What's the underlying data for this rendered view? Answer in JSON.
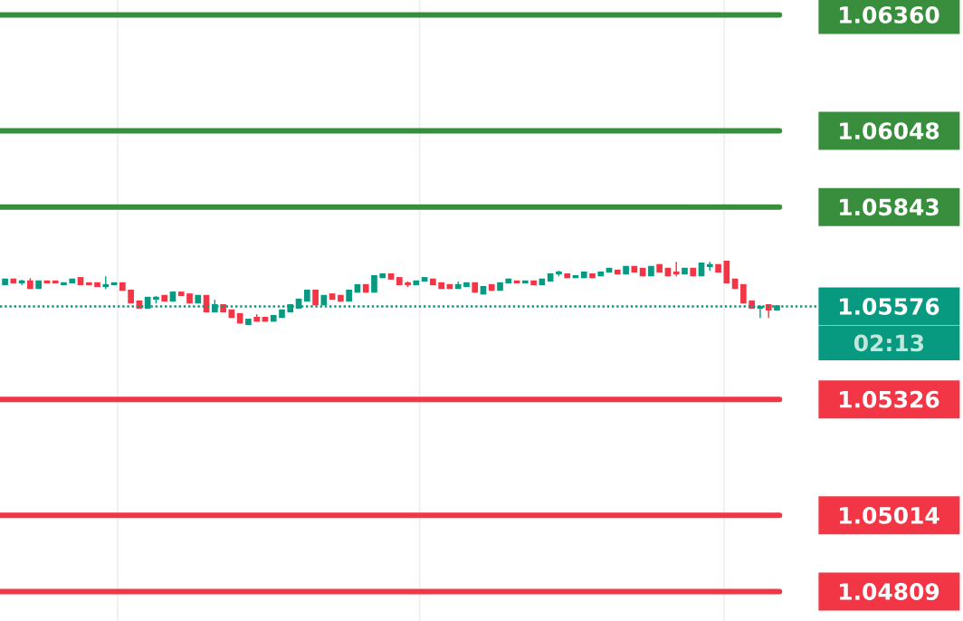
{
  "chart_data": {
    "type": "candlestick",
    "categories": [
      null,
      null,
      null,
      null,
      null,
      null,
      null,
      null,
      null,
      null,
      null,
      null,
      null,
      null,
      null,
      null,
      null,
      null,
      null,
      null,
      null,
      null,
      null,
      null,
      null,
      null,
      null,
      null,
      null,
      null,
      null,
      null,
      null,
      null,
      null,
      null,
      null,
      null,
      null,
      null,
      null,
      null,
      null,
      null,
      null,
      null,
      null,
      null,
      null,
      null,
      null,
      null,
      null,
      null,
      null,
      null,
      null,
      null,
      null,
      null,
      null,
      null,
      null,
      null,
      null,
      null,
      null,
      null,
      null,
      null,
      null,
      null,
      null,
      null,
      null,
      null,
      null,
      null,
      null,
      null,
      null,
      null,
      null,
      null,
      null,
      null,
      null,
      null,
      null,
      null,
      null,
      null,
      null
    ],
    "ohlc": [
      [
        1.05633,
        1.05648,
        1.05633,
        1.05648
      ],
      [
        1.05648,
        1.05648,
        1.05638,
        1.05638
      ],
      [
        1.05638,
        1.05648,
        1.05633,
        1.05643
      ],
      [
        1.05643,
        1.05652,
        1.05623,
        1.05623
      ],
      [
        1.05623,
        1.05643,
        1.05623,
        1.05643
      ],
      [
        1.05643,
        1.05643,
        1.05638,
        1.05638
      ],
      [
        1.05643,
        1.05643,
        1.05638,
        1.05638
      ],
      [
        1.05633,
        1.05638,
        1.05633,
        1.05638
      ],
      [
        1.05638,
        1.05648,
        1.05638,
        1.05648
      ],
      [
        1.05652,
        1.05652,
        1.05633,
        1.05633
      ],
      [
        1.05638,
        1.05638,
        1.05633,
        1.05633
      ],
      [
        1.05638,
        1.05638,
        1.05628,
        1.05628
      ],
      [
        1.05628,
        1.05657,
        1.05623,
        1.05633
      ],
      [
        1.05633,
        1.05638,
        1.05633,
        1.05638
      ],
      [
        1.05638,
        1.05638,
        1.05618,
        1.05618
      ],
      [
        1.05618,
        1.05618,
        1.05584,
        1.05584
      ],
      [
        1.05589,
        1.05589,
        1.0557,
        1.0557
      ],
      [
        1.0557,
        1.05599,
        1.0557,
        1.05599
      ],
      [
        1.05594,
        1.05604,
        1.05584,
        1.05599
      ],
      [
        1.05604,
        1.05604,
        1.05589,
        1.05589
      ],
      [
        1.05589,
        1.05613,
        1.05589,
        1.05613
      ],
      [
        1.05613,
        1.05613,
        1.05604,
        1.05604
      ],
      [
        1.05608,
        1.05608,
        1.05584,
        1.05584
      ],
      [
        1.05584,
        1.05604,
        1.05584,
        1.05604
      ],
      [
        1.05604,
        1.05604,
        1.0556,
        1.0556
      ],
      [
        1.0556,
        1.05594,
        1.0556,
        1.05579
      ],
      [
        1.05579,
        1.05579,
        1.0556,
        1.0556
      ],
      [
        1.05565,
        1.05565,
        1.05545,
        1.05545
      ],
      [
        1.05555,
        1.05555,
        1.0553,
        1.0553
      ],
      [
        1.05526,
        1.0554,
        1.05526,
        1.0554
      ],
      [
        1.05545,
        1.05555,
        1.05535,
        1.05535
      ],
      [
        1.05545,
        1.05545,
        1.05535,
        1.05535
      ],
      [
        1.05535,
        1.0555,
        1.05535,
        1.0555
      ],
      [
        1.05545,
        1.05565,
        1.05545,
        1.05565
      ],
      [
        1.0556,
        1.05579,
        1.0556,
        1.05579
      ],
      [
        1.0557,
        1.05594,
        1.0557,
        1.05594
      ],
      [
        1.05589,
        1.05618,
        1.05589,
        1.05618
      ],
      [
        1.05618,
        1.05618,
        1.05579,
        1.05579
      ],
      [
        1.05579,
        1.05604,
        1.05579,
        1.05604
      ],
      [
        1.05608,
        1.05608,
        1.05594,
        1.05594
      ],
      [
        1.05604,
        1.05604,
        1.05589,
        1.05589
      ],
      [
        1.05589,
        1.05618,
        1.05589,
        1.05618
      ],
      [
        1.05613,
        1.05633,
        1.05613,
        1.05633
      ],
      [
        1.05633,
        1.05633,
        1.05613,
        1.05613
      ],
      [
        1.05613,
        1.05657,
        1.05613,
        1.05657
      ],
      [
        1.05652,
        1.05662,
        1.05652,
        1.05662
      ],
      [
        1.05662,
        1.05662,
        1.05648,
        1.05648
      ],
      [
        1.05652,
        1.05652,
        1.05633,
        1.05633
      ],
      [
        1.05638,
        1.05643,
        1.05628,
        1.05633
      ],
      [
        1.05633,
        1.05643,
        1.05633,
        1.05643
      ],
      [
        1.05643,
        1.05652,
        1.05643,
        1.05652
      ],
      [
        1.05648,
        1.05648,
        1.05633,
        1.05633
      ],
      [
        1.05638,
        1.05638,
        1.05623,
        1.05623
      ],
      [
        1.05633,
        1.05633,
        1.05623,
        1.05623
      ],
      [
        1.05623,
        1.05643,
        1.05623,
        1.05633
      ],
      [
        1.05628,
        1.05638,
        1.05628,
        1.05638
      ],
      [
        1.05638,
        1.05638,
        1.05613,
        1.05613
      ],
      [
        1.05608,
        1.05628,
        1.05608,
        1.05628
      ],
      [
        1.05633,
        1.05633,
        1.05618,
        1.05618
      ],
      [
        1.05618,
        1.05638,
        1.05618,
        1.05638
      ],
      [
        1.05638,
        1.05648,
        1.05638,
        1.05648
      ],
      [
        1.05643,
        1.05643,
        1.05638,
        1.05638
      ],
      [
        1.05638,
        1.05643,
        1.05638,
        1.05643
      ],
      [
        1.05643,
        1.05643,
        1.05633,
        1.05633
      ],
      [
        1.05633,
        1.05648,
        1.05633,
        1.05648
      ],
      [
        1.05643,
        1.05662,
        1.05643,
        1.05662
      ],
      [
        1.05662,
        1.05672,
        1.05657,
        1.05667
      ],
      [
        1.05662,
        1.05662,
        1.05652,
        1.05652
      ],
      [
        1.05652,
        1.05657,
        1.05652,
        1.05657
      ],
      [
        1.05652,
        1.05667,
        1.05652,
        1.05667
      ],
      [
        1.05662,
        1.05662,
        1.05652,
        1.05652
      ],
      [
        1.05657,
        1.05667,
        1.05657,
        1.05667
      ],
      [
        1.05667,
        1.05677,
        1.05667,
        1.05677
      ],
      [
        1.05672,
        1.05672,
        1.05662,
        1.05662
      ],
      [
        1.05662,
        1.05682,
        1.05662,
        1.05682
      ],
      [
        1.05682,
        1.05682,
        1.05667,
        1.05667
      ],
      [
        1.05677,
        1.05677,
        1.05657,
        1.05657
      ],
      [
        1.05657,
        1.05682,
        1.05657,
        1.05682
      ],
      [
        1.05687,
        1.05687,
        1.05667,
        1.05667
      ],
      [
        1.05677,
        1.05677,
        1.05657,
        1.05657
      ],
      [
        1.05667,
        1.05696,
        1.05657,
        1.05662
      ],
      [
        1.05662,
        1.05677,
        1.05662,
        1.05677
      ],
      [
        1.05677,
        1.05677,
        1.05657,
        1.05657
      ],
      [
        1.05657,
        1.05691,
        1.05657,
        1.05691
      ],
      [
        1.05682,
        1.05696,
        1.05672,
        1.05687
      ],
      [
        1.05687,
        1.05687,
        1.05667,
        1.05667
      ],
      [
        1.05696,
        1.05696,
        1.05638,
        1.05638
      ],
      [
        1.05648,
        1.05648,
        1.05623,
        1.05623
      ],
      [
        1.05633,
        1.05633,
        1.05584,
        1.05584
      ],
      [
        1.05589,
        1.05589,
        1.0557,
        1.0557
      ],
      [
        1.0557,
        1.05579,
        1.05545,
        1.05574
      ],
      [
        1.05579,
        1.05579,
        1.05545,
        1.05565
      ],
      [
        1.05565,
        1.05576,
        1.05565,
        1.05576
      ]
    ],
    "yticks": [
      {
        "value": 1.0636,
        "label": "1.06360"
      },
      {
        "value": 1.06048,
        "label": "1.06048"
      },
      {
        "value": 1.05843,
        "label": "1.05843"
      },
      {
        "value": 1.05576,
        "label": "1.05576"
      },
      {
        "value": 1.05326,
        "label": "1.05326"
      },
      {
        "value": 1.05014,
        "label": "1.05014"
      },
      {
        "value": 1.04809,
        "label": "1.04809"
      }
    ],
    "ylim": [
      1.0473,
      1.064
    ],
    "tick_labels": "y",
    "ref_lines": [
      {
        "axis": "y",
        "value": 1.0636,
        "color": "#388e3c",
        "line_style": "solid"
      },
      {
        "axis": "y",
        "value": 1.06048,
        "color": "#388e3c",
        "line_style": "solid"
      },
      {
        "axis": "y",
        "value": 1.05843,
        "color": "#388e3c",
        "line_style": "solid"
      },
      {
        "axis": "y",
        "value": 1.05576,
        "color": "#089981",
        "line_style": "dotted"
      },
      {
        "axis": "y",
        "value": 1.05326,
        "color": "#f23645",
        "line_style": "solid"
      },
      {
        "axis": "y",
        "value": 1.05014,
        "color": "#f23645",
        "line_style": "solid"
      },
      {
        "axis": "y",
        "value": 1.04809,
        "color": "#f23645",
        "line_style": "solid"
      }
    ],
    "annotations": [
      "02:13"
    ]
  }
}
